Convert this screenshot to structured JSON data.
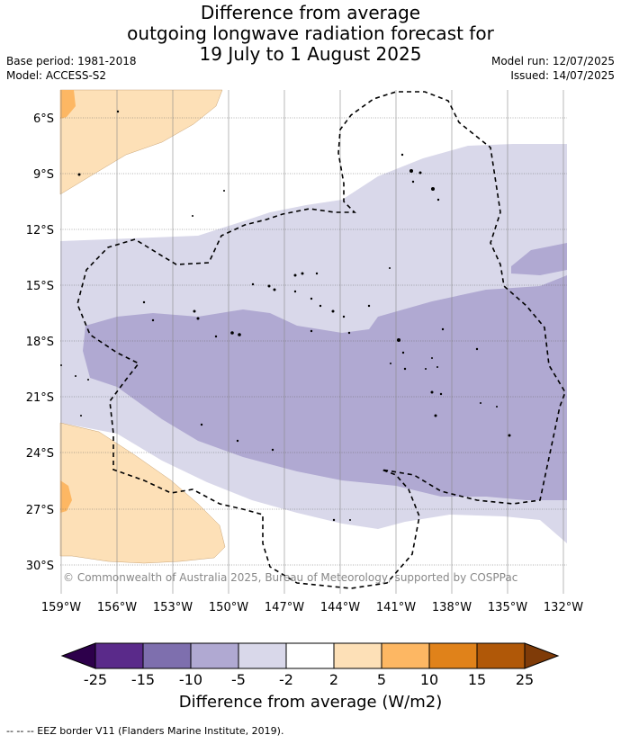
{
  "header": {
    "title_line1": "Difference from average",
    "title_line2": "outgoing longwave radiation forecast for",
    "title_line3": "19 July to 1 August 2025",
    "base_period": "Base period: 1981-2018",
    "model": "Model: ACCESS-S2",
    "model_run": "Model run: 12/07/2025",
    "issued": "Issued: 14/07/2025"
  },
  "map": {
    "lat_labels": [
      "6°S",
      "9°S",
      "12°S",
      "15°S",
      "18°S",
      "21°S",
      "24°S",
      "27°S",
      "30°S"
    ],
    "lon_labels": [
      "159°W",
      "156°W",
      "153°W",
      "150°W",
      "147°W",
      "144°W",
      "141°W",
      "138°W",
      "135°W",
      "132°W"
    ],
    "copyright": "© Commonwealth of Australia 2025, Bureau of Meteorology, supported by COSPPac"
  },
  "colorbar": {
    "tick_labels": [
      "-25",
      "-15",
      "-10",
      "-5",
      "-2",
      "2",
      "5",
      "10",
      "15",
      "25"
    ],
    "colors": [
      "#5a2a8a",
      "#7e6fae",
      "#b0a9d2",
      "#d9d8ea",
      "#ffffff",
      "#fde0b7",
      "#fdb763",
      "#e0821a",
      "#b05808"
    ],
    "under_color": "#2d004b",
    "over_color": "#7f3b08",
    "title": "Difference from average (W/m2)"
  },
  "footer": {
    "legend": "--  --  -- EEZ border V11 (Flanders Marine Institute, 2019)."
  }
}
